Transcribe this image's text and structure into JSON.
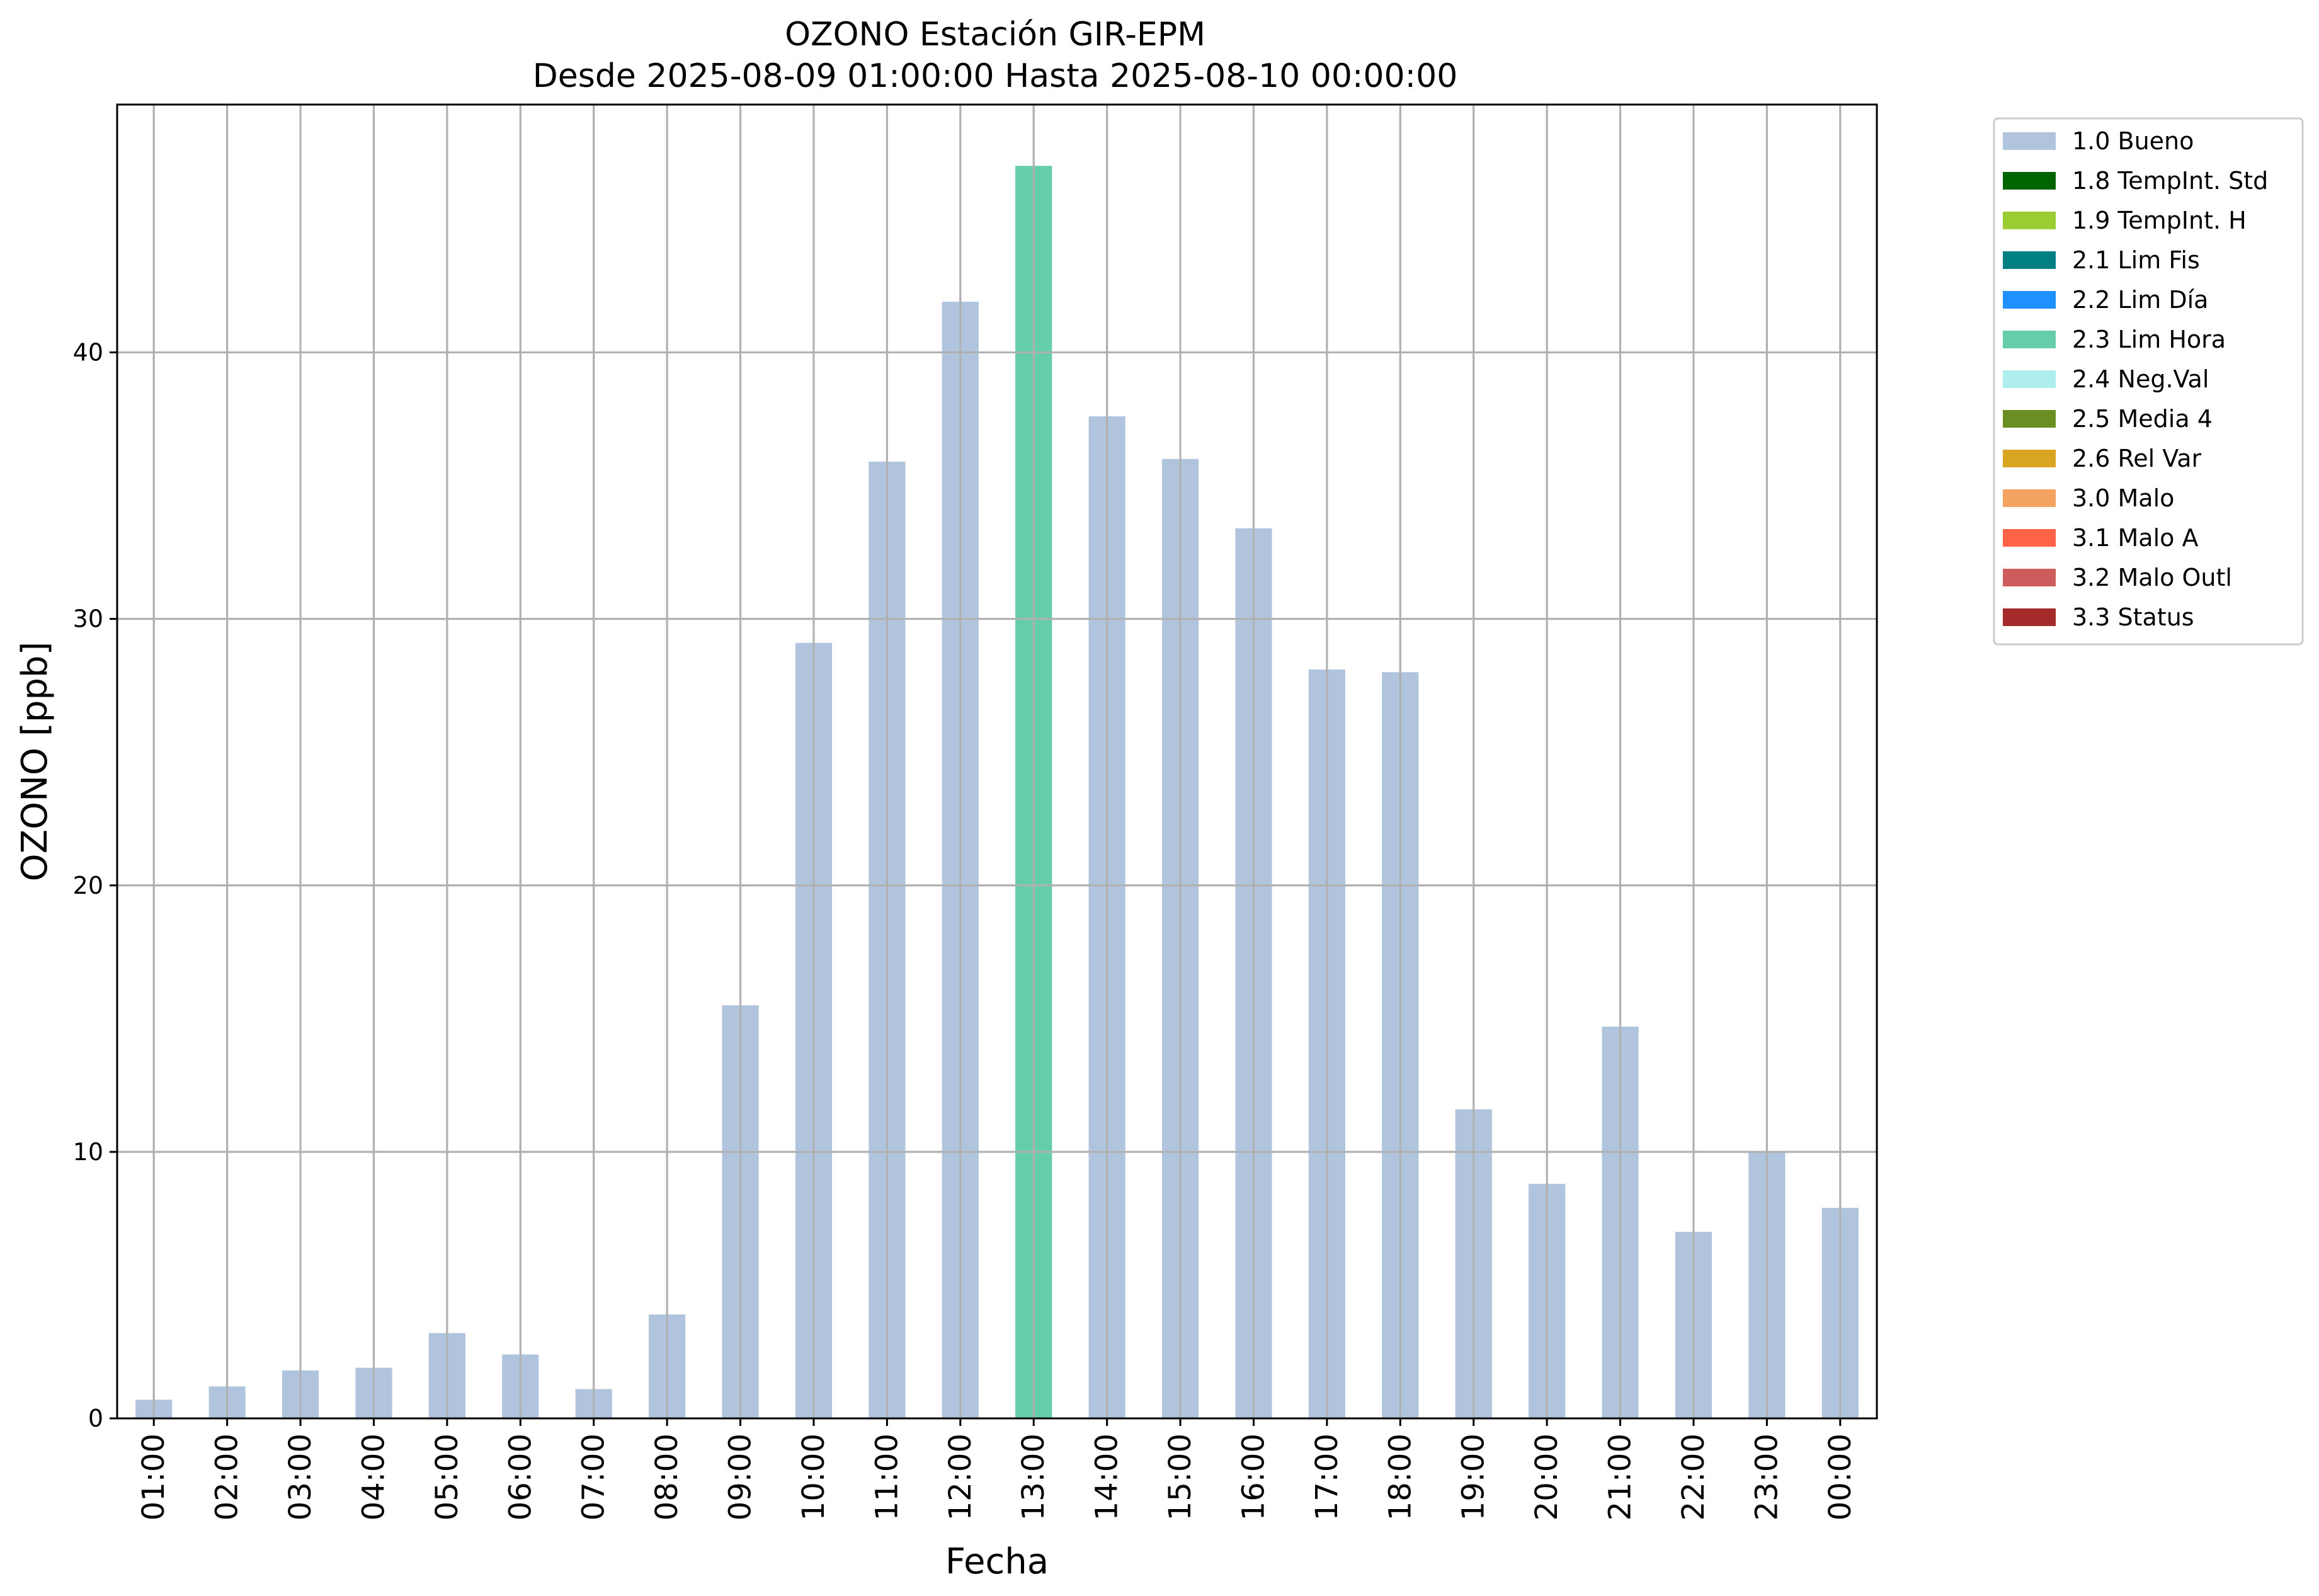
{
  "chart_data": {
    "type": "bar",
    "title": "OZONO Estación GIR-EPM",
    "subtitle": "Desde 2025-08-09 01:00:00 Hasta 2025-08-10 00:00:00",
    "xlabel": "Fecha",
    "ylabel": "OZONO [ppb]",
    "ylim": [
      0,
      49.3
    ],
    "yticks": [
      0,
      10,
      20,
      30,
      40
    ],
    "grid": true,
    "legend_position": "outside-top-right",
    "categories": [
      "01:00",
      "02:00",
      "03:00",
      "04:00",
      "05:00",
      "06:00",
      "07:00",
      "08:00",
      "09:00",
      "10:00",
      "11:00",
      "12:00",
      "13:00",
      "14:00",
      "15:00",
      "16:00",
      "17:00",
      "18:00",
      "19:00",
      "20:00",
      "21:00",
      "22:00",
      "23:00",
      "00:00"
    ],
    "values": [
      0.7,
      1.2,
      1.8,
      1.9,
      3.2,
      2.4,
      1.1,
      3.9,
      15.5,
      29.1,
      35.9,
      41.9,
      47.0,
      37.6,
      36.0,
      33.4,
      28.1,
      28.0,
      11.6,
      8.8,
      14.7,
      7.0,
      10.0,
      7.9
    ],
    "bar_flags": [
      "1.0 Bueno",
      "1.0 Bueno",
      "1.0 Bueno",
      "1.0 Bueno",
      "1.0 Bueno",
      "1.0 Bueno",
      "1.0 Bueno",
      "1.0 Bueno",
      "1.0 Bueno",
      "1.0 Bueno",
      "1.0 Bueno",
      "1.0 Bueno",
      "2.3 Lim Hora",
      "1.0 Bueno",
      "1.0 Bueno",
      "1.0 Bueno",
      "1.0 Bueno",
      "1.0 Bueno",
      "1.0 Bueno",
      "1.0 Bueno",
      "1.0 Bueno",
      "1.0 Bueno",
      "1.0 Bueno",
      "1.0 Bueno"
    ],
    "legend": [
      {
        "label": "1.0 Bueno",
        "color": "#b0c4de"
      },
      {
        "label": "1.8 TempInt. Std",
        "color": "#006400"
      },
      {
        "label": "1.9 TempInt. H",
        "color": "#9acd32"
      },
      {
        "label": "2.1 Lim Fis",
        "color": "#008080"
      },
      {
        "label": "2.2 Lim Día",
        "color": "#1e90ff"
      },
      {
        "label": "2.3 Lim Hora",
        "color": "#66cdaa"
      },
      {
        "label": "2.4 Neg.Val",
        "color": "#afeeee"
      },
      {
        "label": "2.5 Media 4",
        "color": "#6b8e23"
      },
      {
        "label": "2.6 Rel Var",
        "color": "#daa520"
      },
      {
        "label": "3.0 Malo",
        "color": "#f4a460"
      },
      {
        "label": "3.1 Malo A",
        "color": "#ff6347"
      },
      {
        "label": "3.2 Malo Outl",
        "color": "#cd5c5c"
      },
      {
        "label": "3.3 Status",
        "color": "#a52a2a"
      }
    ]
  }
}
